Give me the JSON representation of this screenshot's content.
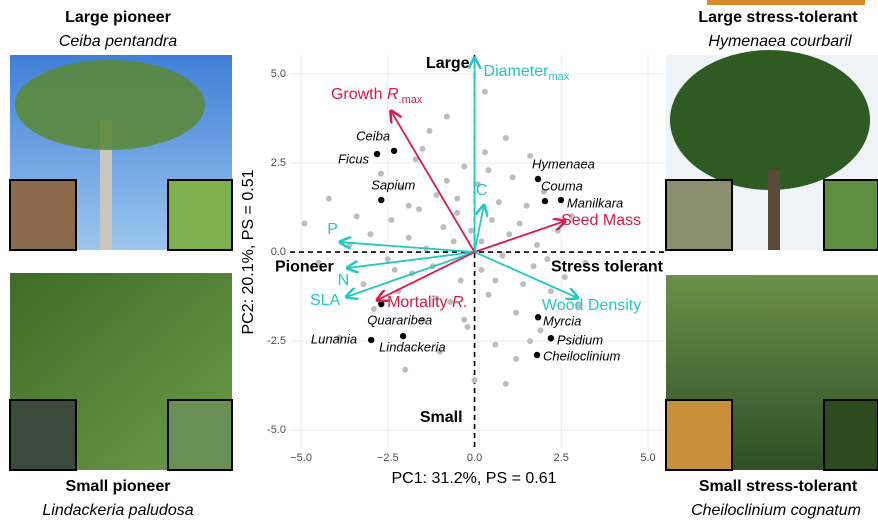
{
  "chart_data": {
    "type": "scatter",
    "xlabel": "PC1: 31.2%, PS = 0.61",
    "ylabel": "PC2: 20.1%, PS = 0.51",
    "xlim": [
      -5.32,
      5.49
    ],
    "ylim": [
      -5.5,
      5.53
    ],
    "xticks": [
      {
        "value": -5,
        "label": "−5.0"
      },
      {
        "value": -2.5,
        "label": "−2.5"
      },
      {
        "value": 0,
        "label": "0.0"
      },
      {
        "value": 2.5,
        "label": "2.5"
      },
      {
        "value": 5,
        "label": "5.0"
      }
    ],
    "yticks": [
      {
        "value": 5,
        "label": "5.0"
      },
      {
        "value": 2.5,
        "label": "2.5"
      },
      {
        "value": 0,
        "label": "0.0"
      },
      {
        "value": -2.5,
        "label": "-2.5"
      },
      {
        "value": -5,
        "label": "-5.0"
      }
    ],
    "grid": true,
    "quadrant_labels": {
      "top": "Large",
      "bottom": "Small",
      "left": "Pioneer",
      "right": "Stress tolerant"
    },
    "points": {
      "color": "#bdbdbd",
      "x": [
        -4.9,
        -4.5,
        -4.2,
        -3.9,
        -3.6,
        -3.4,
        -3.2,
        -3.0,
        -2.9,
        -2.7,
        -2.5,
        -2.4,
        -2.2,
        -2.1,
        -2.0,
        -1.9,
        -1.8,
        -1.7,
        -1.6,
        -1.5,
        -1.4,
        -1.3,
        -1.2,
        -1.1,
        -1.0,
        -0.9,
        -0.8,
        -0.7,
        -0.6,
        -0.5,
        -0.4,
        -0.3,
        -0.2,
        -0.1,
        0.0,
        0.1,
        0.2,
        0.3,
        0.4,
        0.5,
        0.6,
        0.7,
        0.8,
        0.9,
        1.0,
        1.1,
        1.2,
        1.3,
        1.4,
        1.5,
        1.6,
        1.7,
        1.8,
        1.9,
        2.0,
        2.2,
        2.4,
        2.6,
        2.8,
        3.0,
        3.2,
        -1.5,
        -0.8,
        0.3,
        -2.3,
        1.2,
        -0.5,
        0.6,
        2.1,
        -1.1,
        0.2,
        -1.9,
        1.6,
        0.9,
        -0.3,
        0.4
      ],
      "y": [
        0.8,
        -0.3,
        1.5,
        -2.4,
        0.2,
        1.0,
        -0.9,
        0.5,
        -1.6,
        2.2,
        -0.2,
        0.9,
        -1.1,
        1.8,
        -3.3,
        0.4,
        -0.6,
        2.6,
        1.2,
        -1.9,
        0.1,
        3.4,
        -0.4,
        1.6,
        -2.8,
        0.7,
        2.0,
        -1.4,
        0.3,
        1.1,
        -0.8,
        2.4,
        -2.1,
        0.6,
        -3.6,
        1.9,
        -0.5,
        2.8,
        -1.2,
        0.9,
        -2.6,
        1.4,
        -0.1,
        -3.7,
        0.5,
        2.1,
        -1.7,
        0.8,
        -0.9,
        1.3,
        2.7,
        -0.4,
        0.2,
        -2.2,
        1.7,
        -1.1,
        0.6,
        -0.7,
        1.0,
        -1.5,
        -0.3,
        2.9,
        3.8,
        4.5,
        -0.5,
        -3.0,
        1.5,
        -0.8,
        -0.2,
        -1.3,
        0.3,
        1.3,
        -2.5,
        3.2,
        -1.9,
        2.3
      ]
    },
    "species": {
      "color": "#000000",
      "names": [
        "Ceiba",
        "Ficus",
        "Sapium",
        "Hymenaea",
        "Couma",
        "Manilkara",
        "Quararibea",
        "Lunania",
        "Lindackeria",
        "Myrcia",
        "Psidium",
        "Cheiloclinium"
      ],
      "x": [
        -2.32,
        -2.81,
        -2.69,
        1.83,
        2.03,
        2.49,
        -2.69,
        -2.98,
        -2.06,
        1.83,
        2.2,
        1.8
      ],
      "y": [
        2.84,
        2.75,
        1.46,
        2.05,
        1.43,
        1.46,
        -1.46,
        -2.47,
        -2.36,
        -1.83,
        -2.42,
        -2.89
      ]
    },
    "arrows": [
      {
        "label": "Diameter",
        "sub": "max",
        "x": 0,
        "y": 5.45,
        "color": "#26c6c1"
      },
      {
        "label": "Growth ",
        "italic": "R",
        "sub": ".max",
        "x": -2.41,
        "y": 3.96,
        "color": "#d81b4a"
      },
      {
        "label": "C",
        "x": 0.27,
        "y": 1.32,
        "color": "#26c6c1"
      },
      {
        "label": "Seed Mass",
        "x": 2.61,
        "y": 0.87,
        "color": "#d81b4a"
      },
      {
        "label": "P",
        "x": -3.88,
        "y": 0.28,
        "color": "#26c6c1"
      },
      {
        "label": "N",
        "x": -3.67,
        "y": -0.45,
        "color": "#26c6c1"
      },
      {
        "label": "SLA",
        "x": -3.7,
        "y": -1.26,
        "color": "#26c6c1"
      },
      {
        "label": "Mortality ",
        "italic": "R.",
        "x": -2.81,
        "y": -1.35,
        "color": "#d81b4a"
      },
      {
        "label": "Wood Density",
        "x": 2.98,
        "y": -1.29,
        "color": "#26c6c1"
      }
    ]
  },
  "panels": [
    {
      "title": "Large pioneer",
      "species": "Ceiba  pentandra"
    },
    {
      "title": "Large stress-tolerant",
      "species": "Hymenaea courbaril"
    },
    {
      "title": "Small pioneer",
      "species": "Lindackeria paludosa"
    },
    {
      "title": "Small stress-tolerant",
      "species": "Cheiloclinium cognatum"
    }
  ]
}
